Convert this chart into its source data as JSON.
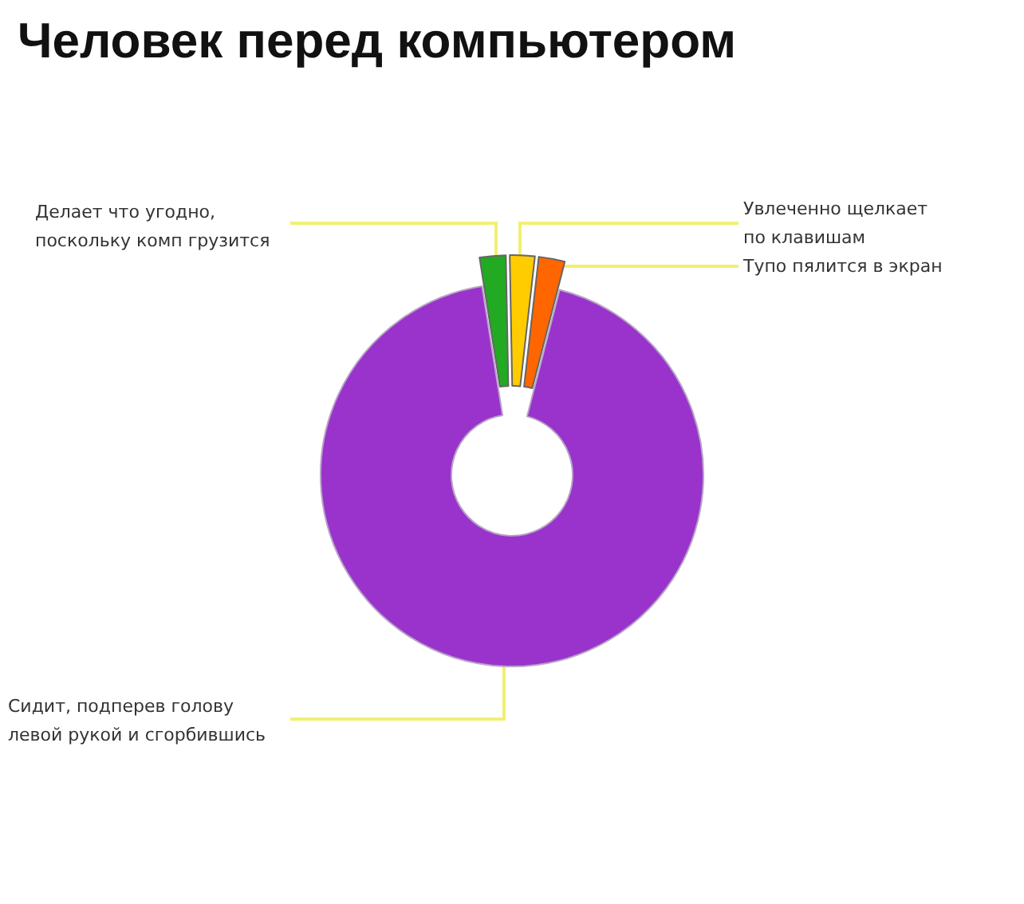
{
  "chart_data": {
    "type": "donut",
    "title": "Человек перед компьютером",
    "categories": [
      "Делает что угодно, поскольку комп грузится",
      "Увлеченно щелкает по клавишам",
      "Тупо пялится в экран",
      "Сидит, подперев голову левой рукой и сгорбившись"
    ],
    "values": [
      2.2,
      2.1,
      2.2,
      93.5
    ],
    "colors": [
      "#22aa22",
      "#ffcc00",
      "#ff6600",
      "#9933cc"
    ]
  }
}
